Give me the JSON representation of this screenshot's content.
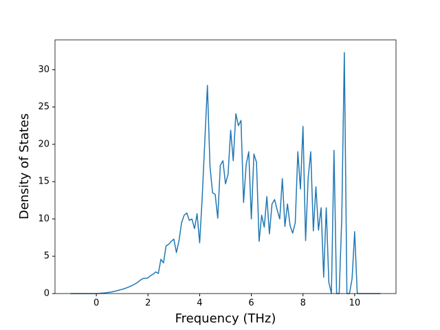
{
  "chart_data": {
    "type": "line",
    "x_label": "Frequency (THz)",
    "y_label": "Density of States",
    "x": [
      -1,
      -0.9,
      -0.8,
      -0.7,
      -0.6,
      -0.5,
      -0.4,
      -0.3,
      -0.2,
      -0.1,
      0,
      0.1,
      0.2,
      0.3,
      0.4,
      0.5,
      0.6,
      0.7,
      0.8,
      0.9,
      1,
      1.1,
      1.2,
      1.3,
      1.4,
      1.5,
      1.6,
      1.7,
      1.8,
      1.9,
      2,
      2.1,
      2.2,
      2.3,
      2.4,
      2.5,
      2.6,
      2.7,
      2.8,
      2.9,
      3,
      3.1,
      3.2,
      3.3,
      3.4,
      3.5,
      3.6,
      3.7,
      3.8,
      3.9,
      4,
      4.1,
      4.2,
      4.3,
      4.4,
      4.5,
      4.6,
      4.7,
      4.8,
      4.9,
      5,
      5.1,
      5.2,
      5.3,
      5.4,
      5.5,
      5.6,
      5.7,
      5.8,
      5.9,
      6,
      6.1,
      6.2,
      6.3,
      6.4,
      6.5,
      6.6,
      6.7,
      6.8,
      6.9,
      7,
      7.1,
      7.2,
      7.3,
      7.4,
      7.5,
      7.6,
      7.7,
      7.8,
      7.9,
      8,
      8.1,
      8.2,
      8.3,
      8.4,
      8.5,
      8.6,
      8.7,
      8.8,
      8.9,
      9,
      9.1,
      9.2,
      9.3,
      9.4,
      9.5,
      9.6,
      9.7,
      9.8,
      9.9,
      10,
      10.1,
      10.2,
      10.3,
      10.4,
      10.5,
      10.6,
      10.7,
      10.8,
      10.9,
      11
    ],
    "series": [
      {
        "color": "#1f77b4",
        "values": [
          0,
          0,
          0,
          0,
          0,
          0,
          0,
          0,
          0,
          0,
          0,
          0.02,
          0.05,
          0.08,
          0.12,
          0.17,
          0.22,
          0.3,
          0.38,
          0.47,
          0.57,
          0.68,
          0.8,
          0.95,
          1.1,
          1.3,
          1.5,
          1.8,
          2.0,
          2.05,
          2.1,
          2.4,
          2.6,
          2.9,
          2.7,
          4.6,
          4.1,
          6.4,
          6.6,
          7.0,
          7.3,
          5.5,
          7.1,
          9.5,
          10.5,
          10.8,
          9.8,
          10.0,
          8.7,
          10.7,
          6.8,
          13.0,
          20.5,
          27.9,
          17.0,
          13.5,
          13.3,
          10.1,
          17.2,
          17.8,
          14.7,
          16.0,
          21.9,
          17.8,
          24.1,
          22.5,
          23.2,
          12.2,
          17.3,
          19.0,
          10.0,
          18.7,
          17.6,
          7.0,
          10.5,
          8.9,
          13.0,
          8.0,
          12.0,
          12.6,
          11.2,
          10.0,
          15.4,
          9.0,
          12.0,
          9.1,
          8.1,
          9.5,
          19.0,
          14.0,
          22.4,
          7.1,
          15.5,
          19.0,
          8.4,
          14.3,
          8.5,
          11.5,
          2.2,
          11.5,
          1.5,
          0,
          19.2,
          0,
          0,
          10.0,
          32.3,
          0,
          0,
          2.0,
          8.3,
          0,
          0,
          0,
          0,
          0,
          0,
          0,
          0,
          0,
          0
        ]
      }
    ],
    "xlim": [
      -1.6,
      11.6
    ],
    "xticks": [
      0,
      2,
      4,
      6,
      8,
      10
    ],
    "ylim": [
      0,
      34
    ],
    "yticks": [
      0,
      5,
      10,
      15,
      20,
      25,
      30
    ]
  }
}
